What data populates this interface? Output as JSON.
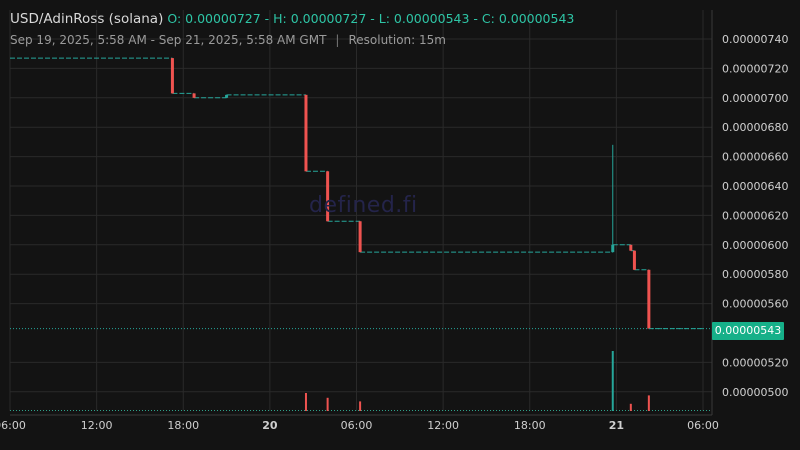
{
  "header": {
    "symbol": "USD/AdinRoss (solana)",
    "ohlc": "O: 0.00000727 - H: 0.00000727 - L: 0.00000543 - C: 0.00000543",
    "range": "Sep 19, 2025, 5:58 AM - Sep 21, 2025, 5:58 AM GMT",
    "resolution": "Resolution: 15m"
  },
  "watermark": "defined.fi",
  "colors": {
    "up": "#26a69a",
    "down": "#ef5350",
    "background": "#131313",
    "grid": "#2a2a2a",
    "price_tag": "#16b089"
  },
  "chart_data": {
    "type": "candlestick",
    "resolution": "15m",
    "start": "2025-09-19 05:58",
    "end": "2025-09-21 05:58",
    "x_tick_labels": [
      {
        "t": "2025-09-19 06:00",
        "label": "06:00",
        "bold": false
      },
      {
        "t": "2025-09-19 12:00",
        "label": "12:00",
        "bold": false
      },
      {
        "t": "2025-09-19 18:00",
        "label": "18:00",
        "bold": false
      },
      {
        "t": "2025-09-20 00:00",
        "label": "20",
        "bold": true
      },
      {
        "t": "2025-09-20 06:00",
        "label": "06:00",
        "bold": false
      },
      {
        "t": "2025-09-20 12:00",
        "label": "12:00",
        "bold": false
      },
      {
        "t": "2025-09-20 18:00",
        "label": "18:00",
        "bold": false
      },
      {
        "t": "2025-09-21 00:00",
        "label": "21",
        "bold": true
      },
      {
        "t": "2025-09-21 06:00",
        "label": "06:00",
        "bold": false
      }
    ],
    "y_tick_labels": [
      "0.00000740",
      "0.00000720",
      "0.00000700",
      "0.00000680",
      "0.00000660",
      "0.00000640",
      "0.00000620",
      "0.00000600",
      "0.00000580",
      "0.00000560",
      "0.00000520",
      "0.00000500"
    ],
    "ylim": [
      4.88e-06,
      7.52e-06
    ],
    "last_price": "0.00000543",
    "candles": [
      {
        "t": "2025-09-19 17:15",
        "o": 7.27e-06,
        "h": 7.27e-06,
        "l": 7.03e-06,
        "c": 7.03e-06
      },
      {
        "t": "2025-09-19 18:45",
        "o": 7.03e-06,
        "h": 7.03e-06,
        "l": 7e-06,
        "c": 7e-06
      },
      {
        "t": "2025-09-19 21:00",
        "o": 7e-06,
        "h": 7.02e-06,
        "l": 7e-06,
        "c": 7.02e-06
      },
      {
        "t": "2025-09-20 02:30",
        "o": 7.02e-06,
        "h": 7.02e-06,
        "l": 6.5e-06,
        "c": 6.5e-06
      },
      {
        "t": "2025-09-20 04:00",
        "o": 6.5e-06,
        "h": 6.5e-06,
        "l": 6.16e-06,
        "c": 6.16e-06
      },
      {
        "t": "2025-09-20 06:15",
        "o": 6.16e-06,
        "h": 6.16e-06,
        "l": 5.95e-06,
        "c": 5.95e-06
      },
      {
        "t": "2025-09-20 23:45",
        "o": 5.95e-06,
        "h": 6.68e-06,
        "l": 5.95e-06,
        "c": 6e-06
      },
      {
        "t": "2025-09-21 01:00",
        "o": 6e-06,
        "h": 6e-06,
        "l": 5.96e-06,
        "c": 5.96e-06
      },
      {
        "t": "2025-09-21 01:15",
        "o": 5.96e-06,
        "h": 5.96e-06,
        "l": 5.83e-06,
        "c": 5.83e-06
      },
      {
        "t": "2025-09-21 02:15",
        "o": 5.83e-06,
        "h": 5.83e-06,
        "l": 5.43e-06,
        "c": 5.43e-06
      }
    ],
    "volumes": [
      {
        "t": "2025-09-20 02:30",
        "v": 0.3,
        "dir": "down"
      },
      {
        "t": "2025-09-20 04:00",
        "v": 0.22,
        "dir": "down"
      },
      {
        "t": "2025-09-20 06:15",
        "v": 0.16,
        "dir": "down"
      },
      {
        "t": "2025-09-20 23:45",
        "v": 1.0,
        "dir": "up"
      },
      {
        "t": "2025-09-21 01:00",
        "v": 0.12,
        "dir": "down"
      },
      {
        "t": "2025-09-21 02:15",
        "v": 0.26,
        "dir": "down"
      }
    ]
  }
}
